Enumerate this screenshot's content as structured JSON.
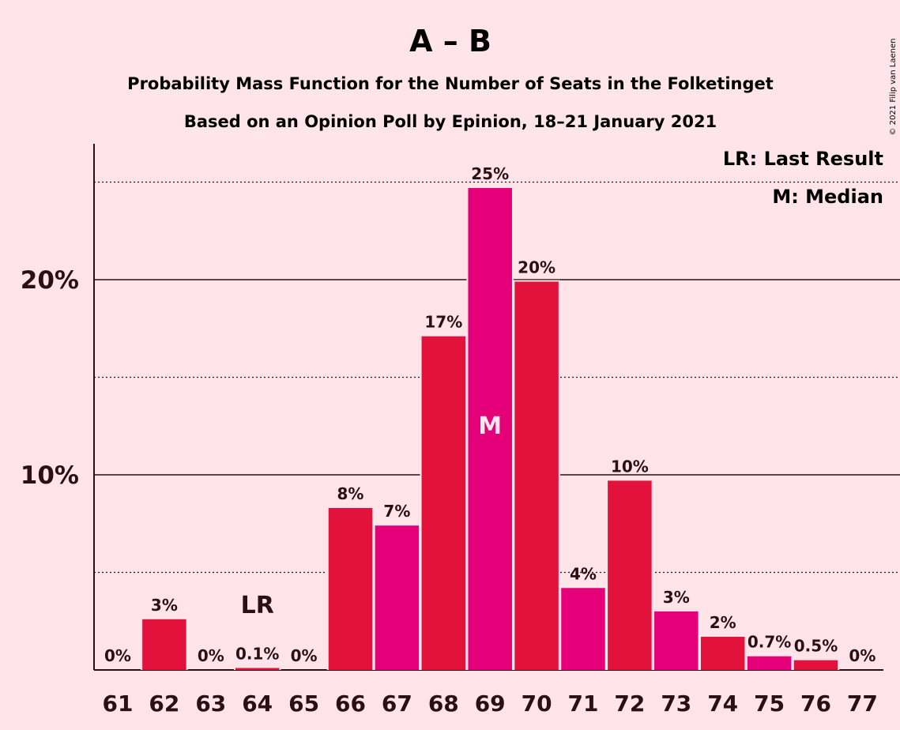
{
  "chart_data": {
    "type": "bar",
    "title": "A – B",
    "subtitle_1": "Probability Mass Function for the Number of Seats in the Folketinget",
    "subtitle_2": "Based on an Opinion Poll by Epinion, 18–21 January 2021",
    "copyright": "© 2021 Filip van Laenen",
    "categories": [
      "61",
      "62",
      "63",
      "64",
      "65",
      "66",
      "67",
      "68",
      "69",
      "70",
      "71",
      "72",
      "73",
      "74",
      "75",
      "76",
      "77"
    ],
    "values": [
      0,
      2.6,
      0,
      0.1,
      0,
      8.3,
      7.4,
      17.1,
      24.7,
      19.9,
      4.2,
      9.7,
      3.0,
      1.7,
      0.7,
      0.5,
      0
    ],
    "value_labels": [
      "0%",
      "3%",
      "0%",
      "0.1%",
      "0%",
      "8%",
      "7%",
      "17%",
      "25%",
      "20%",
      "4%",
      "10%",
      "3%",
      "2%",
      "0.7%",
      "0.5%",
      "0%"
    ],
    "bar_colors": [
      "#E3123D",
      "#E3123D",
      "#E3123D",
      "#E3123D",
      "#E3123D",
      "#E3123D",
      "#E5007A",
      "#E3123D",
      "#E5007A",
      "#E3123D",
      "#E5007A",
      "#E3123D",
      "#E5007A",
      "#E3123D",
      "#E5007A",
      "#E3123D",
      "#E3123D"
    ],
    "ylim": [
      0,
      26.9
    ],
    "yticks": [
      {
        "value": 10,
        "label": "10%"
      },
      {
        "value": 20,
        "label": "20%"
      }
    ],
    "minor_gridlines": [
      5,
      15,
      25
    ],
    "last_result": {
      "category": "64",
      "label": "LR"
    },
    "median": {
      "category": "69",
      "label": "M"
    },
    "legend": [
      "LR: Last Result",
      "M: Median"
    ],
    "legend_position": "top-right",
    "colors": {
      "background": "#FFE5EA",
      "primary": "#E3123D",
      "secondary": "#E5007A",
      "text": "#2a0f14"
    }
  }
}
